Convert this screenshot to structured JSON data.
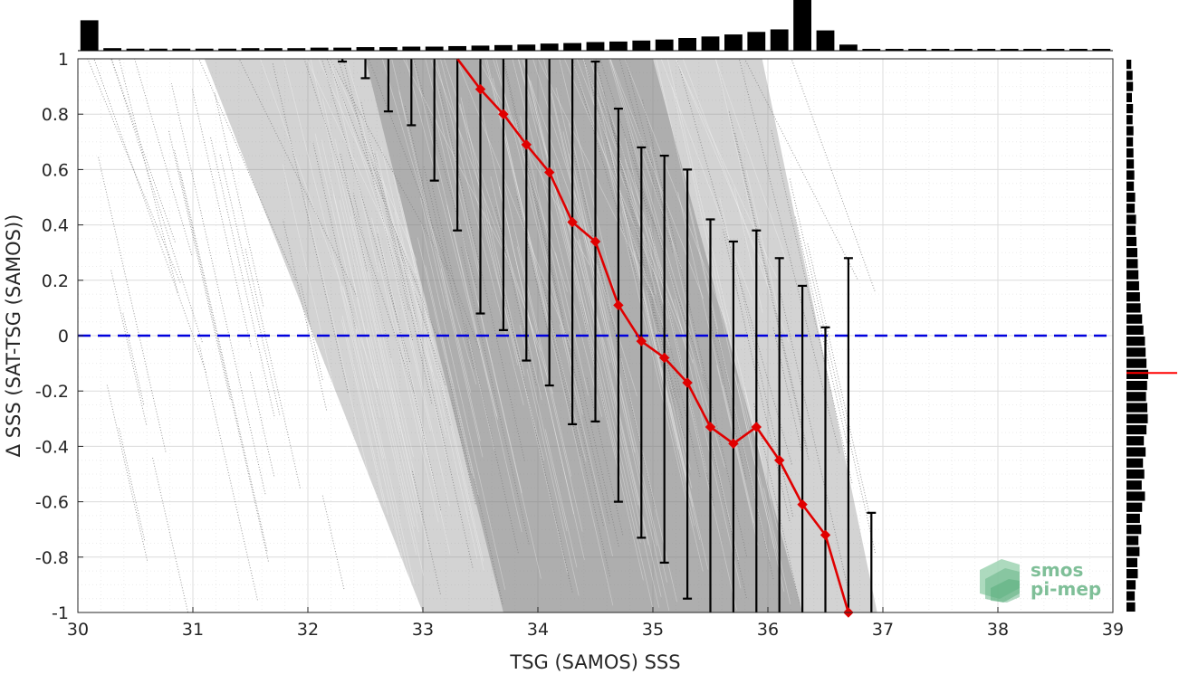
{
  "chart_data": {
    "type": "scatter",
    "title": "",
    "xlabel": "TSG (SAMOS) SSS",
    "ylabel": "Δ SSS (SAT-TSG (SAMOS))",
    "xlim": [
      30,
      39
    ],
    "ylim": [
      -1,
      1
    ],
    "xticks": [
      "30",
      "31",
      "32",
      "33",
      "34",
      "35",
      "36",
      "37",
      "38",
      "39"
    ],
    "yticks": [
      "1",
      "0.8",
      "0.6",
      "0.4",
      "0.2",
      "0",
      "-0.2",
      "-0.4",
      "-0.6",
      "-0.8",
      "-1"
    ],
    "grid": true,
    "zero_line": {
      "y": 0,
      "color": "#0000dd",
      "style": "dashed"
    },
    "scatter_color": "#808080",
    "scatter_band": {
      "lower_edge_at_y_minus1": [
        33.0,
        36.95
      ],
      "upper_edge_at_y_plus1": [
        31.1,
        35.95
      ]
    },
    "binned_mean": {
      "color": "#e00000",
      "x": [
        33.3,
        33.5,
        33.7,
        33.9,
        34.1,
        34.3,
        34.5,
        34.7,
        34.9,
        35.1,
        35.3,
        35.5,
        35.7,
        35.9,
        36.1,
        36.3,
        36.5,
        36.7
      ],
      "y": [
        1.02,
        0.89,
        0.8,
        0.69,
        0.59,
        0.41,
        0.34,
        0.11,
        -0.02,
        -0.08,
        -0.17,
        -0.33,
        -0.39,
        -0.33,
        -0.45,
        -0.61,
        -0.72,
        -1.0
      ]
    },
    "error_bars": {
      "color": "#000000",
      "x": [
        32.3,
        32.5,
        32.7,
        32.9,
        33.1,
        33.3,
        33.5,
        33.7,
        33.9,
        34.1,
        34.3,
        34.5,
        34.7,
        34.9,
        35.1,
        35.3,
        35.5,
        35.7,
        35.9,
        36.1,
        36.3,
        36.5,
        36.7,
        36.9
      ],
      "lower": [
        0.99,
        0.93,
        0.81,
        0.76,
        0.56,
        0.38,
        0.08,
        0.02,
        -0.09,
        -0.18,
        -0.32,
        -0.31,
        -0.6,
        -0.73,
        -0.82,
        -0.95,
        -1.0,
        -1.0,
        -1.0,
        -1.0,
        -1.0,
        -1.0,
        -1.0,
        -1.0
      ],
      "upper": [
        1.0,
        1.0,
        1.0,
        1.0,
        1.0,
        1.0,
        1.0,
        1.0,
        1.0,
        1.0,
        1.0,
        0.99,
        0.82,
        0.68,
        0.65,
        0.6,
        0.42,
        0.34,
        0.38,
        0.28,
        0.18,
        0.03,
        0.28,
        -0.64
      ]
    },
    "top_histogram": {
      "color": "#000000",
      "bin_centers": [
        30.1,
        30.3,
        30.5,
        30.7,
        30.9,
        31.1,
        31.3,
        31.5,
        31.7,
        31.9,
        32.1,
        32.3,
        32.5,
        32.7,
        32.9,
        33.1,
        33.3,
        33.5,
        33.7,
        33.9,
        34.1,
        34.3,
        34.5,
        34.7,
        34.9,
        35.1,
        35.3,
        35.5,
        35.7,
        35.9,
        36.1,
        36.3,
        36.5,
        36.7,
        36.9,
        37.1,
        37.3,
        37.5,
        37.7,
        37.9,
        38.1,
        38.3,
        38.5,
        38.7,
        38.9
      ],
      "relative_counts": [
        0.6,
        0.05,
        0.04,
        0.04,
        0.04,
        0.04,
        0.04,
        0.05,
        0.05,
        0.05,
        0.06,
        0.06,
        0.07,
        0.07,
        0.08,
        0.08,
        0.09,
        0.1,
        0.11,
        0.12,
        0.14,
        0.15,
        0.17,
        0.18,
        0.2,
        0.22,
        0.25,
        0.28,
        0.32,
        0.37,
        0.42,
        1.0,
        0.4,
        0.12,
        0.03,
        0.02,
        0.02,
        0.02,
        0.02,
        0.02,
        0.02,
        0.02,
        0.02,
        0.02,
        0.02
      ]
    },
    "right_histogram": {
      "color": "#000000",
      "bin_centers": [
        0.98,
        0.94,
        0.9,
        0.86,
        0.82,
        0.78,
        0.74,
        0.7,
        0.66,
        0.62,
        0.58,
        0.54,
        0.5,
        0.46,
        0.42,
        0.38,
        0.34,
        0.3,
        0.26,
        0.22,
        0.18,
        0.14,
        0.1,
        0.06,
        0.02,
        -0.02,
        -0.06,
        -0.1,
        -0.14,
        -0.18,
        -0.22,
        -0.26,
        -0.3,
        -0.34,
        -0.38,
        -0.42,
        -0.46,
        -0.5,
        -0.54,
        -0.58,
        -0.62,
        -0.66,
        -0.7,
        -0.74,
        -0.78,
        -0.82,
        -0.86,
        -0.9,
        -0.94,
        -0.98
      ],
      "relative_counts": [
        0.22,
        0.28,
        0.3,
        0.25,
        0.3,
        0.28,
        0.32,
        0.3,
        0.32,
        0.34,
        0.36,
        0.34,
        0.4,
        0.38,
        0.44,
        0.42,
        0.46,
        0.5,
        0.52,
        0.55,
        0.58,
        0.62,
        0.65,
        0.72,
        0.78,
        0.85,
        0.88,
        0.92,
        1.0,
        0.95,
        0.9,
        0.96,
        0.98,
        0.92,
        0.8,
        0.88,
        0.76,
        0.82,
        0.7,
        0.85,
        0.72,
        0.62,
        0.68,
        0.55,
        0.6,
        0.5,
        0.52,
        0.42,
        0.38,
        0.4
      ],
      "median_marker": {
        "y": -0.135,
        "color": "#ff0000"
      }
    }
  },
  "watermark": {
    "line1": "smos",
    "line2": "pi-mep",
    "color": "#7fbf98"
  }
}
